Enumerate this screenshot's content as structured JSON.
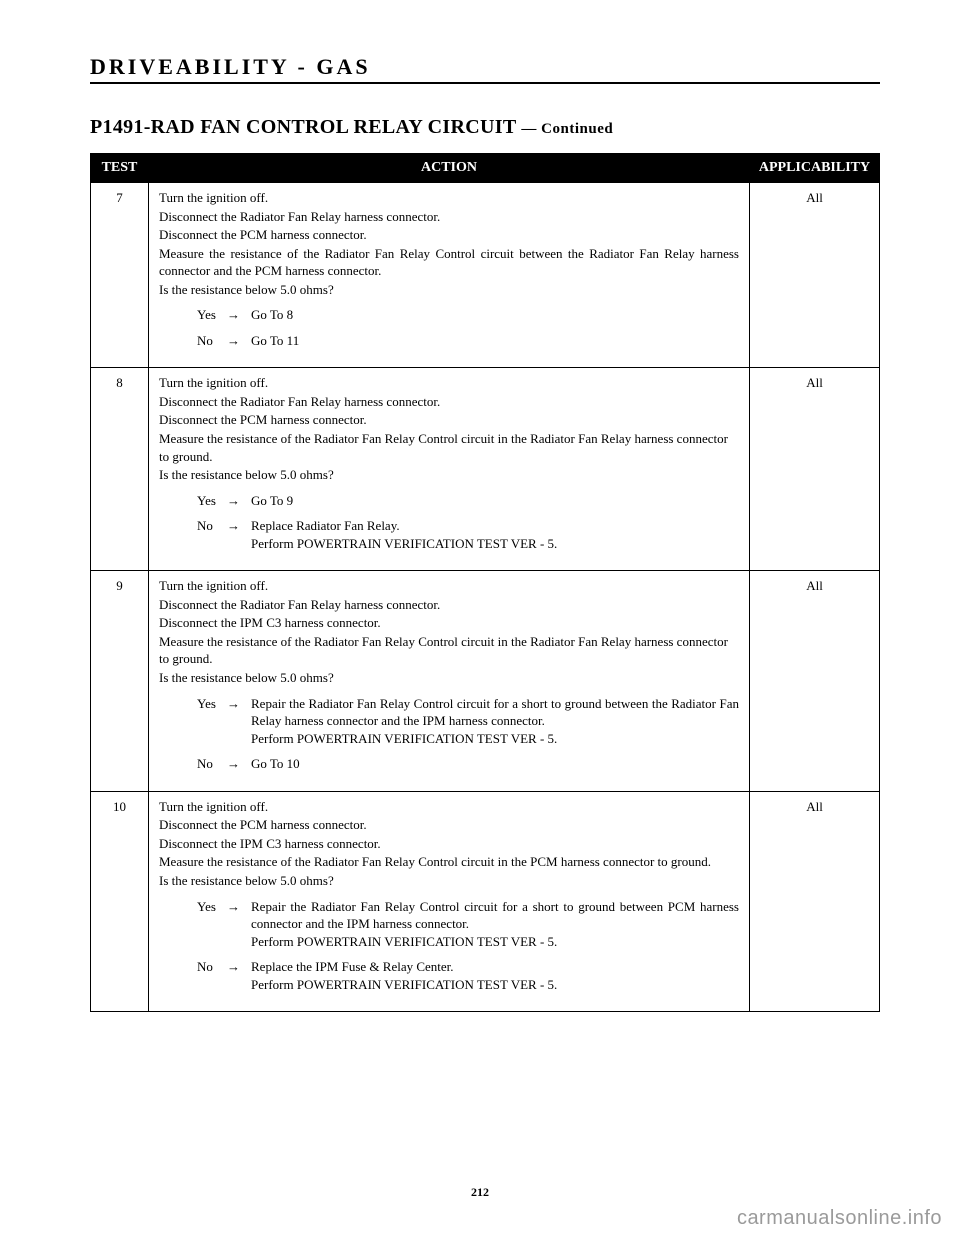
{
  "header": {
    "section": "DRIVEABILITY - GAS"
  },
  "title": {
    "code": "P1491-RAD FAN CONTROL RELAY CIRCUIT",
    "continued": "— Continued"
  },
  "table": {
    "columns": {
      "test": "TEST",
      "action": "ACTION",
      "applic": "APPLICABILITY"
    },
    "rows": [
      {
        "num": "7",
        "applic": "All",
        "lines": [
          {
            "text": "Turn the ignition off."
          },
          {
            "text": "Disconnect the Radiator Fan Relay harness connector."
          },
          {
            "text": "Disconnect the PCM harness connector."
          },
          {
            "text": "Measure the resistance of the Radiator Fan Relay Control circuit between the Radiator Fan Relay harness connector and the PCM harness connector.",
            "justify": true
          },
          {
            "text": "Is the resistance below 5.0 ohms?"
          }
        ],
        "branches": [
          {
            "label": "Yes",
            "result": "Go To   8"
          },
          {
            "label": "No",
            "result": "Go To   11"
          }
        ]
      },
      {
        "num": "8",
        "applic": "All",
        "lines": [
          {
            "text": "Turn the ignition off."
          },
          {
            "text": "Disconnect the Radiator Fan Relay harness connector."
          },
          {
            "text": "Disconnect the PCM harness connector."
          },
          {
            "text": "Measure the resistance of the Radiator Fan Relay Control circuit in the Radiator Fan Relay harness connector to ground."
          },
          {
            "text": "Is the resistance below 5.0 ohms?"
          }
        ],
        "branches": [
          {
            "label": "Yes",
            "result": "Go To   9"
          },
          {
            "label": "No",
            "result": "Replace Radiator Fan Relay.\nPerform POWERTRAIN VERIFICATION TEST VER - 5."
          }
        ]
      },
      {
        "num": "9",
        "applic": "All",
        "lines": [
          {
            "text": "Turn the ignition off."
          },
          {
            "text": "Disconnect the Radiator Fan Relay harness connector."
          },
          {
            "text": "Disconnect the IPM C3 harness connector."
          },
          {
            "text": "Measure the resistance of the Radiator Fan Relay Control circuit in the Radiator Fan Relay harness connector to ground."
          },
          {
            "text": "Is the resistance below 5.0 ohms?"
          }
        ],
        "branches": [
          {
            "label": "Yes",
            "result": "Repair the Radiator Fan Relay Control circuit for a short to ground between the Radiator Fan Relay harness connector and the IPM harness connector.\nPerform POWERTRAIN VERIFICATION TEST VER - 5.",
            "justify": true
          },
          {
            "label": "No",
            "result": "Go To   10"
          }
        ]
      },
      {
        "num": "10",
        "applic": "All",
        "lines": [
          {
            "text": "Turn the ignition off."
          },
          {
            "text": "Disconnect the PCM harness connector."
          },
          {
            "text": "Disconnect the IPM C3 harness connector."
          },
          {
            "text": "Measure the resistance of the Radiator Fan Relay Control circuit in the PCM harness connector to ground."
          },
          {
            "text": "Is the resistance below 5.0 ohms?"
          }
        ],
        "branches": [
          {
            "label": "Yes",
            "result": "Repair the Radiator Fan Relay Control circuit for a short to ground between PCM harness connector and the IPM harness connector.\nPerform POWERTRAIN VERIFICATION TEST VER - 5.",
            "justify": true
          },
          {
            "label": "No",
            "result": "Replace the IPM Fuse & Relay Center.\nPerform POWERTRAIN VERIFICATION TEST VER - 5."
          }
        ]
      }
    ]
  },
  "footer": {
    "page_num": "212",
    "watermark": "carmanualsonline.info"
  },
  "style": {
    "colors": {
      "text": "#000000",
      "bg": "#ffffff",
      "th_bg": "#000000",
      "th_fg": "#ffffff",
      "watermark": "#9a9a9a",
      "border": "#000000"
    },
    "arrow": "→"
  }
}
